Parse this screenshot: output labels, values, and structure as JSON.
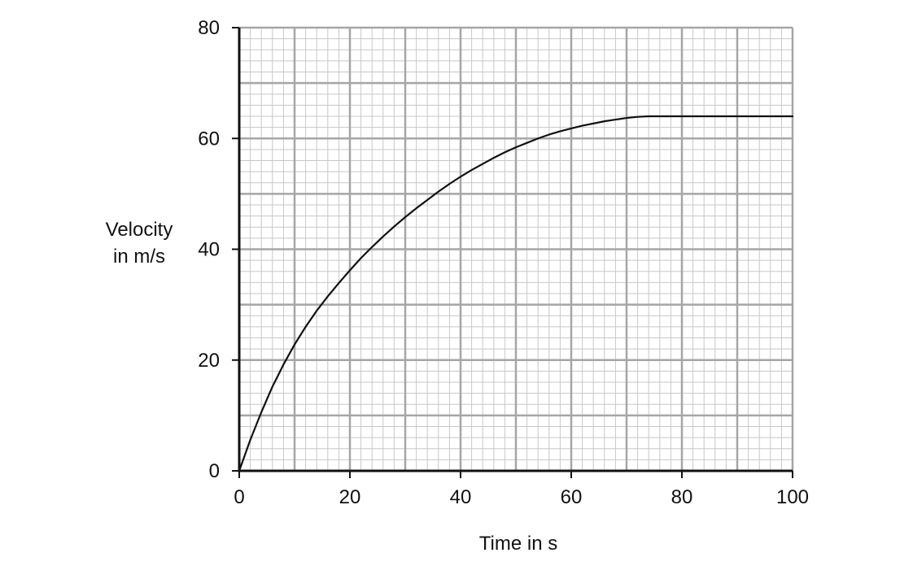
{
  "chart_data": {
    "type": "line",
    "title": "",
    "xlabel": "Time in s",
    "ylabel_lines": [
      "Velocity",
      "in m/s"
    ],
    "xlim": [
      0,
      100
    ],
    "ylim": [
      0,
      80
    ],
    "x_ticks": [
      0,
      20,
      40,
      60,
      80,
      100
    ],
    "y_ticks": [
      0,
      20,
      40,
      60,
      80
    ],
    "x_tick_labels": [
      "0",
      "20",
      "40",
      "60",
      "80",
      "100"
    ],
    "y_tick_labels": [
      "0",
      "20",
      "40",
      "60",
      "80"
    ],
    "grid": true,
    "grid_major_step": {
      "x": 10,
      "y": 10
    },
    "grid_minor_step": {
      "x": 2,
      "y": 2
    },
    "colors": {
      "minor_grid": "#c8c8c8",
      "major_grid": "#a6a6a6",
      "axis": "#111111",
      "curve": "#111111"
    },
    "series": [
      {
        "x": [
          0,
          2,
          4,
          6,
          8,
          10,
          12,
          14,
          16,
          18,
          20,
          22,
          24,
          26,
          28,
          30,
          32,
          34,
          36,
          38,
          40,
          42,
          44,
          46,
          48,
          50,
          52,
          54,
          56,
          58,
          60,
          62,
          64,
          66,
          68,
          70,
          72,
          74,
          75,
          80,
          85,
          90,
          95,
          100
        ],
        "y": [
          0,
          5.6,
          10.6,
          15.2,
          19.2,
          22.8,
          26.0,
          28.9,
          31.5,
          33.9,
          36.2,
          38.4,
          40.4,
          42.3,
          44.1,
          45.8,
          47.4,
          48.9,
          50.4,
          51.8,
          53.1,
          54.3,
          55.4,
          56.5,
          57.5,
          58.4,
          59.2,
          60.0,
          60.7,
          61.3,
          61.8,
          62.3,
          62.7,
          63.1,
          63.4,
          63.7,
          63.9,
          64.0,
          64.0,
          64.0,
          64.0,
          64.0,
          64.0,
          64.0
        ]
      }
    ]
  }
}
